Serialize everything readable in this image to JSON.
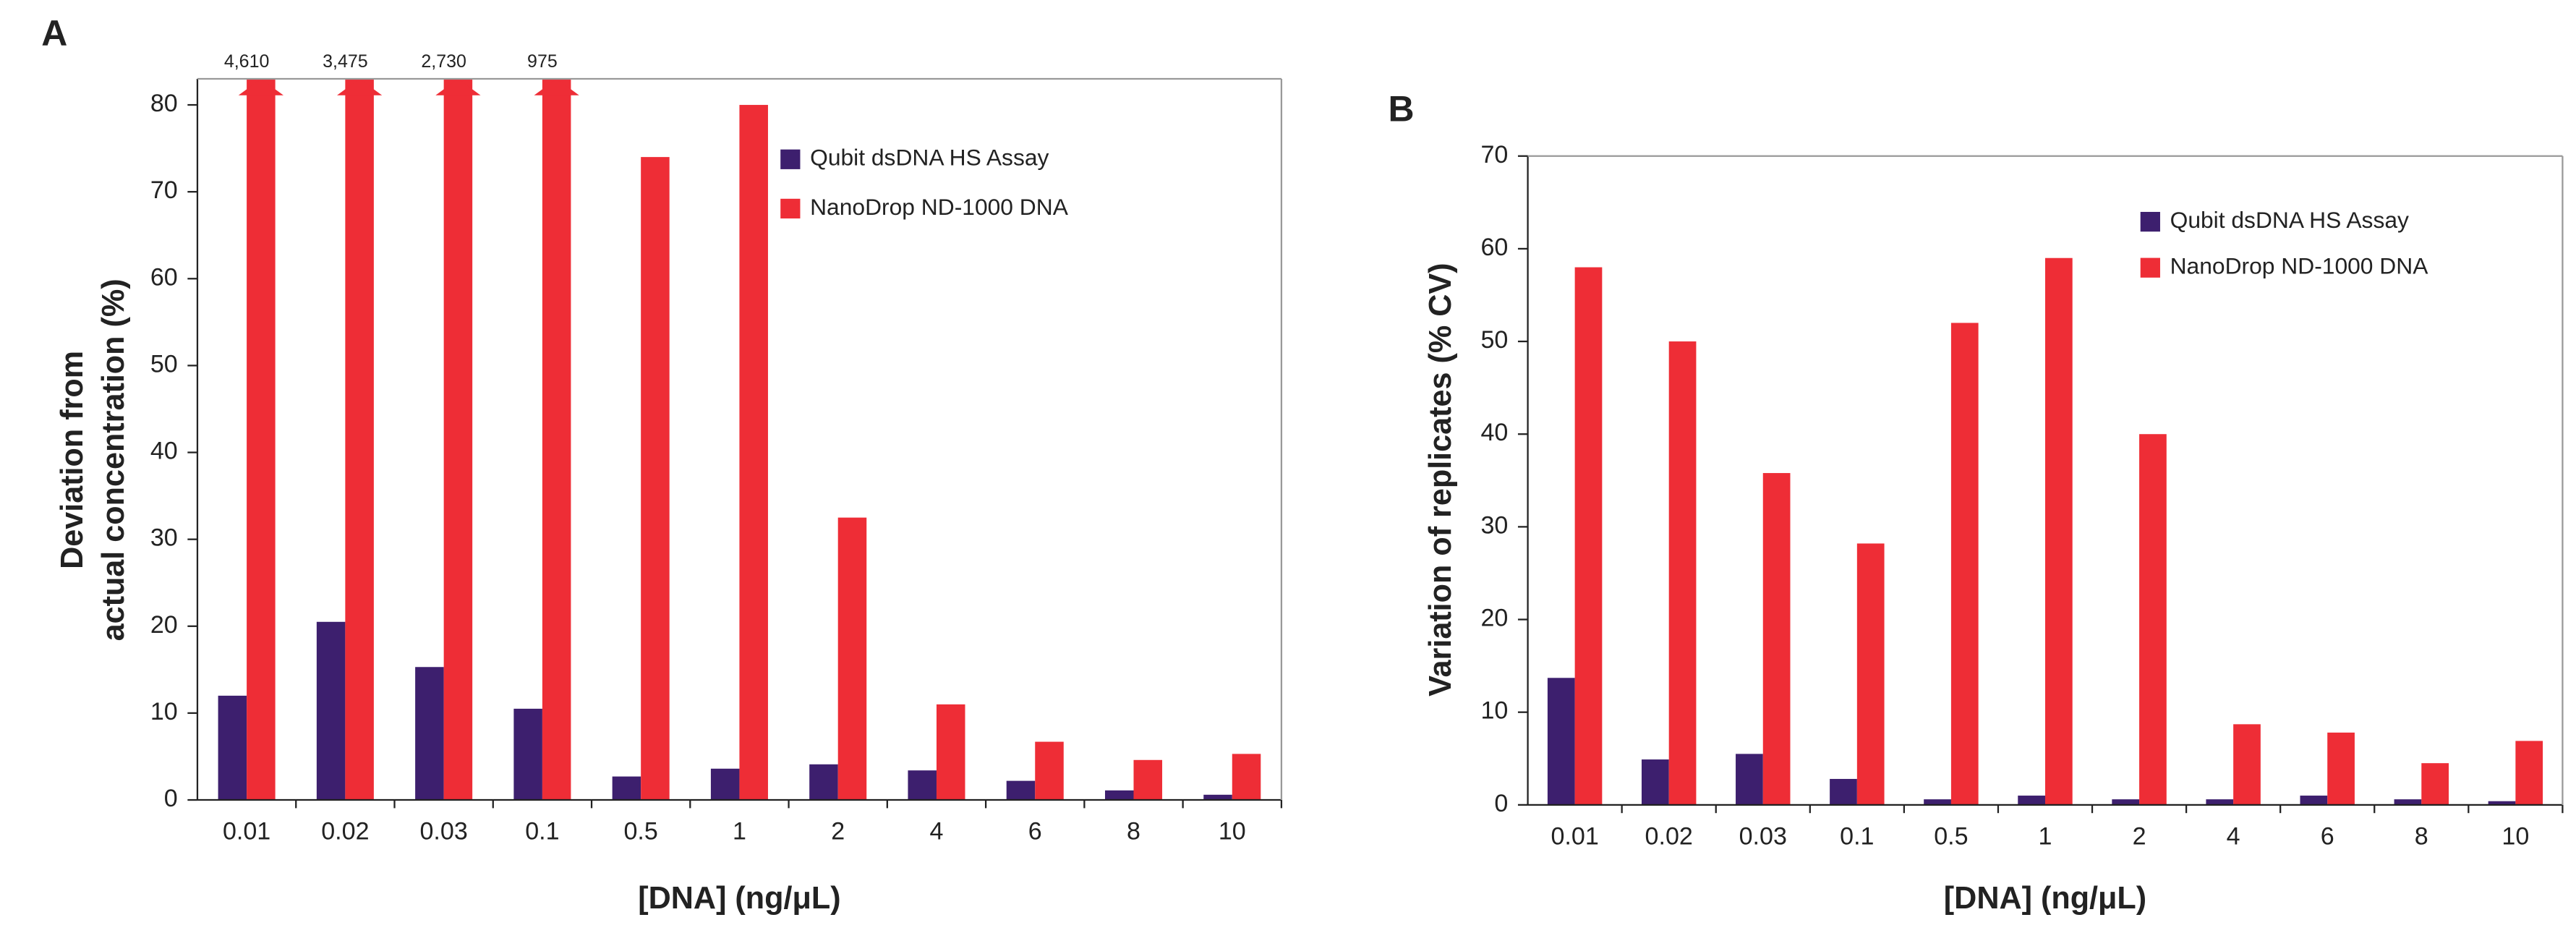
{
  "chart_data": [
    {
      "type": "bar",
      "panel_label": "A",
      "y_label": [
        "Deviation from",
        "actual concentration (%)"
      ],
      "x_label": "[DNA] (ng/μL)",
      "categories": [
        "0.01",
        "0.02",
        "0.03",
        "0.1",
        "0.5",
        "1",
        "2",
        "4",
        "6",
        "8",
        "10"
      ],
      "series": [
        {
          "name": "Qubit dsDNA HS Assay",
          "color": "#3d1f6e",
          "values": [
            12,
            20.5,
            15.3,
            10.5,
            2.7,
            3.6,
            4.1,
            3.4,
            2.2,
            1.1,
            0.6
          ]
        },
        {
          "name": "NanoDrop ND-1000 DNA",
          "color": "#ee2d36",
          "values": [
            4610,
            3475,
            2730,
            975,
            74,
            80,
            32.5,
            11,
            6.7,
            4.6,
            5.3
          ],
          "value_labels": [
            "4,610",
            "3,475",
            "2,730",
            "975",
            null,
            null,
            null,
            null,
            null,
            null,
            null
          ]
        }
      ],
      "ylim": [
        0,
        83
      ],
      "yticks": [
        0,
        10,
        20,
        30,
        40,
        50,
        60,
        70,
        80
      ],
      "legend": "upper right"
    },
    {
      "type": "bar",
      "panel_label": "B",
      "y_label": [
        "Variation of replicates (% CV)"
      ],
      "x_label": "[DNA] (ng/μL)",
      "categories": [
        "0.01",
        "0.02",
        "0.03",
        "0.1",
        "0.5",
        "1",
        "2",
        "4",
        "6",
        "8",
        "10"
      ],
      "series": [
        {
          "name": "Qubit dsDNA HS Assay",
          "color": "#3d1f6e",
          "values": [
            13.7,
            4.9,
            5.5,
            2.8,
            0.6,
            1.0,
            0.6,
            0.6,
            1.0,
            0.6,
            0.4
          ]
        },
        {
          "name": "NanoDrop ND-1000 DNA",
          "color": "#ee2d36",
          "values": [
            58,
            50,
            35.8,
            28.2,
            52,
            59,
            40,
            8.7,
            7.8,
            4.5,
            6.9
          ]
        }
      ],
      "ylim": [
        0,
        70
      ],
      "yticks": [
        0,
        10,
        20,
        30,
        40,
        50,
        60,
        70
      ],
      "legend": "upper right"
    }
  ]
}
